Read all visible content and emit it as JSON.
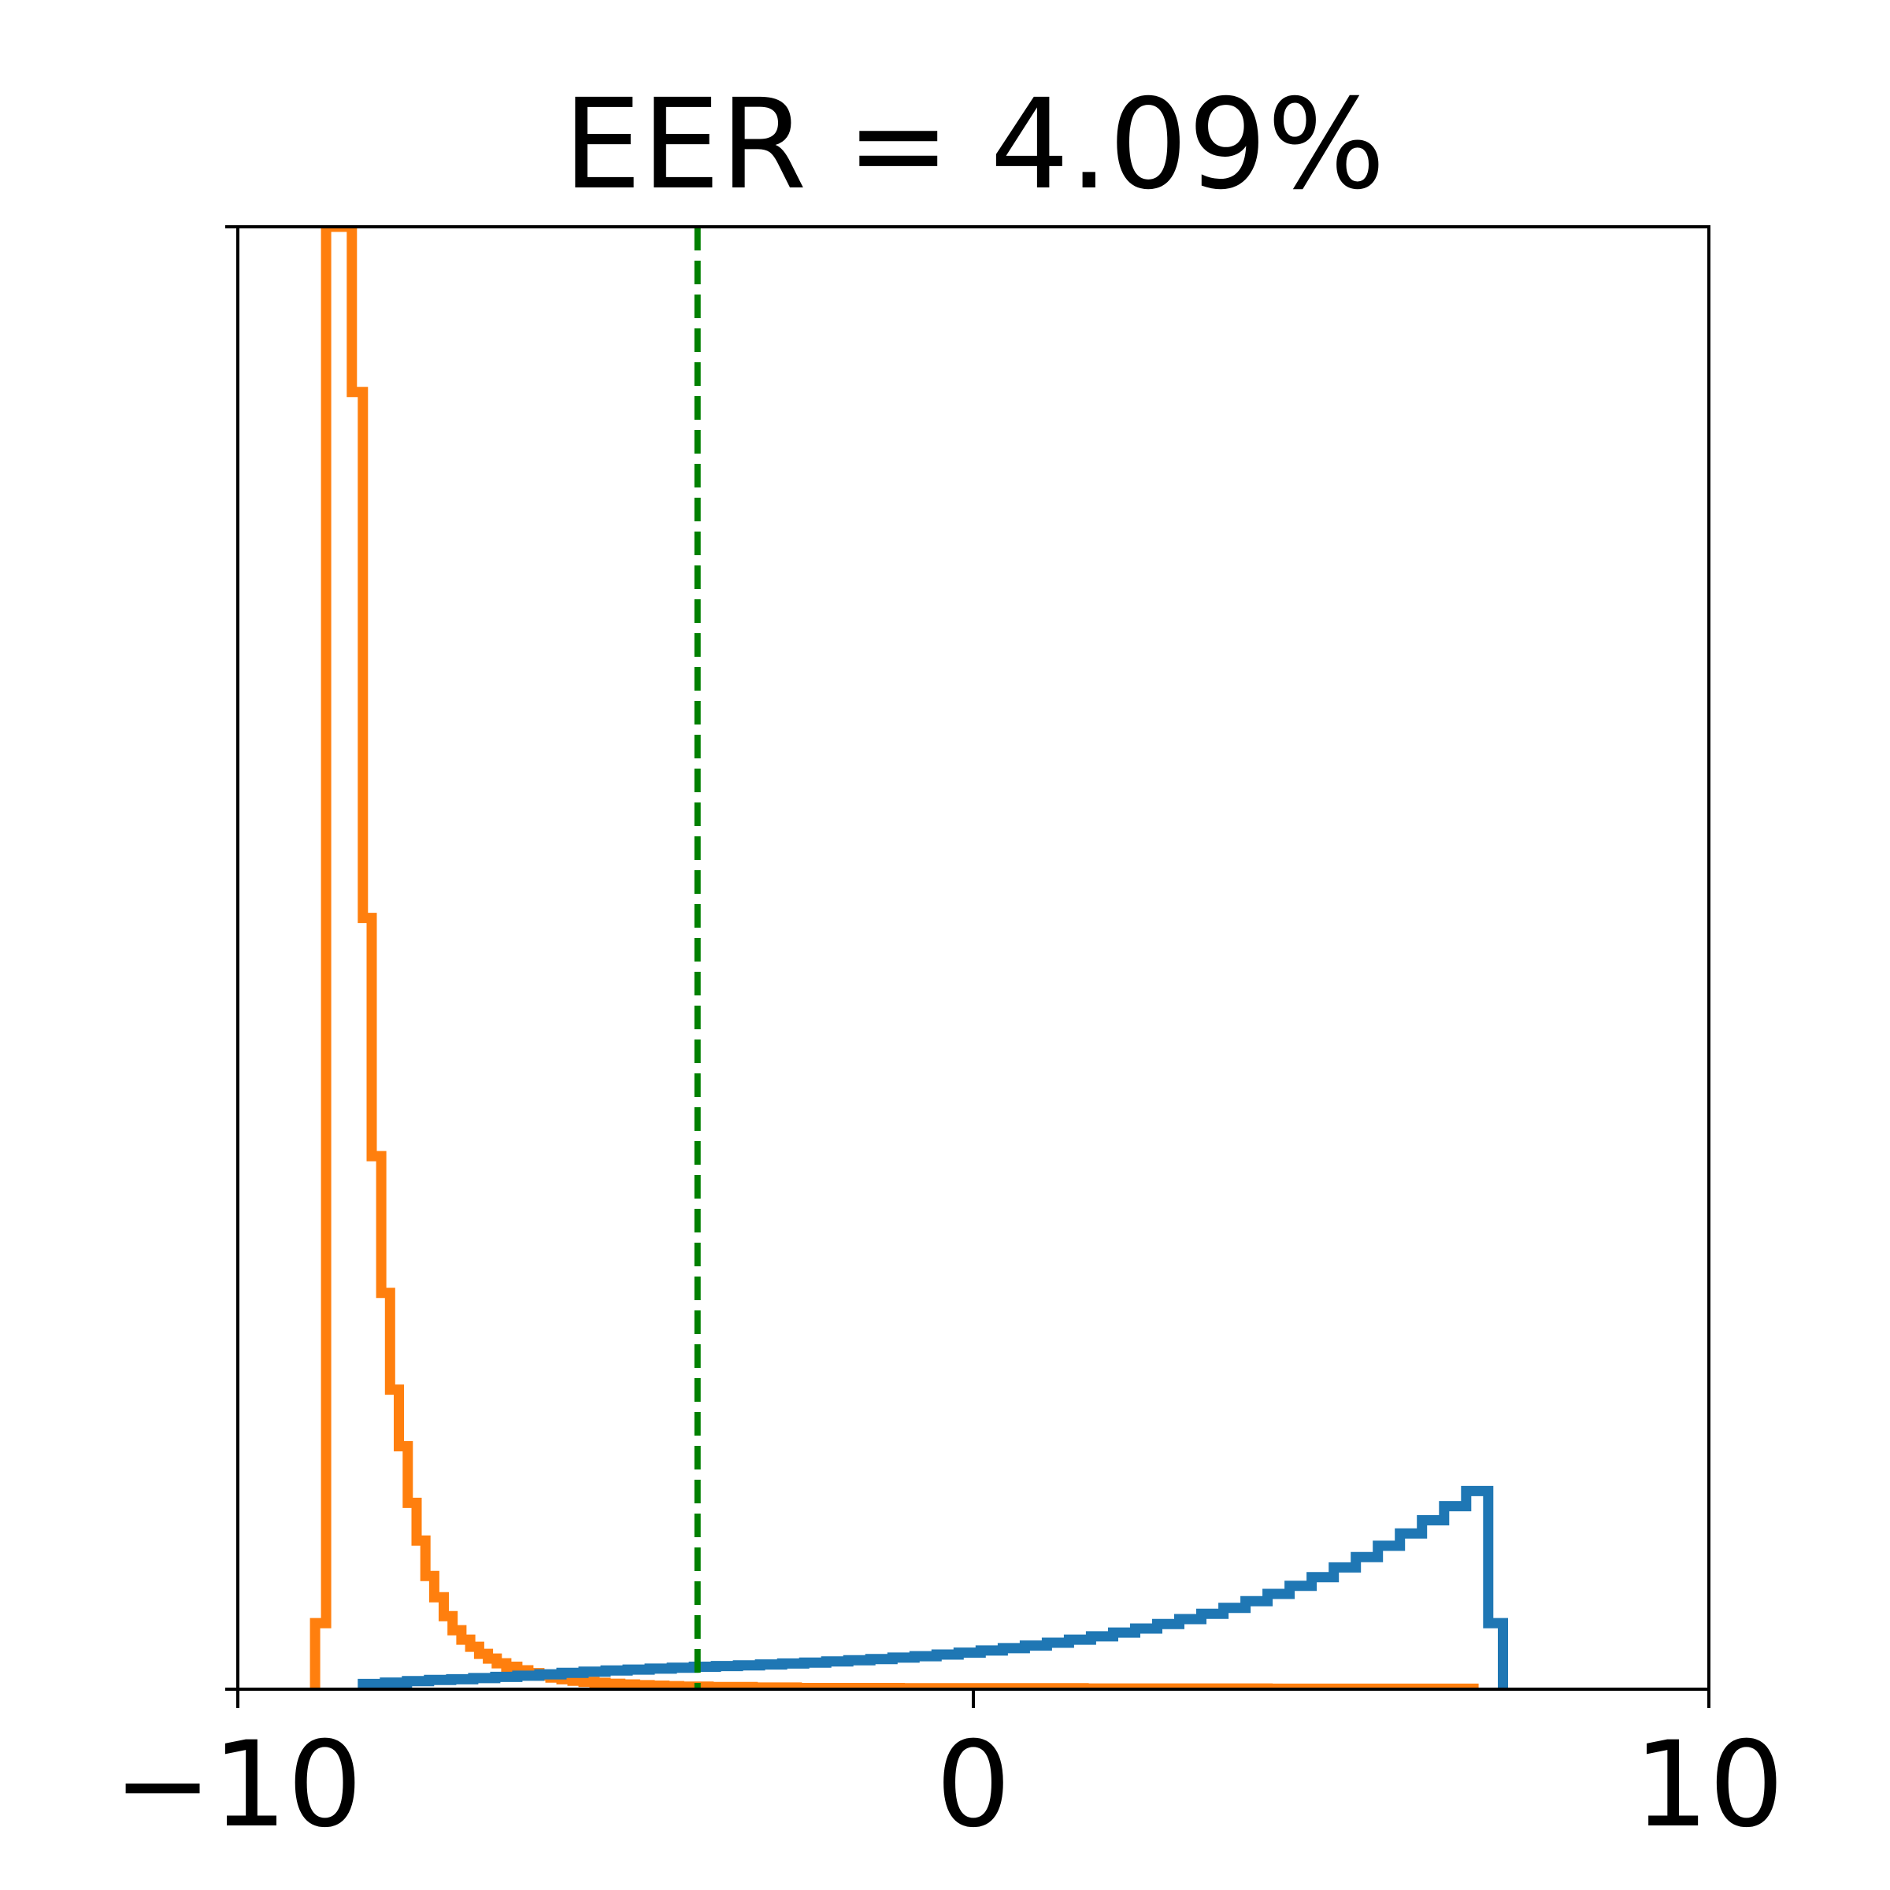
{
  "chart_data": {
    "type": "histogram",
    "title": "EER = 4.09%",
    "xlabel": "",
    "ylabel": "",
    "xlim": [
      -10,
      10
    ],
    "ylim": [
      0,
      0.62
    ],
    "x_ticks": [
      -10,
      0,
      10
    ],
    "x_tick_labels": [
      "−10",
      "0",
      "10"
    ],
    "y_tick_labels": [],
    "grid": false,
    "legend": "none",
    "threshold": {
      "x": -3.75,
      "color": "#008000",
      "style": "dashed"
    },
    "series": [
      {
        "color": "#ff7f0e",
        "style": "step-outline",
        "bins": [
          {
            "x0": -8.95,
            "x1": -8.8,
            "y": 0.028
          },
          {
            "x0": -8.8,
            "x1": -8.45,
            "y": 0.62
          },
          {
            "x0": -8.45,
            "x1": -8.3,
            "y": 0.55
          },
          {
            "x0": -8.3,
            "x1": -8.18,
            "y": 0.327
          },
          {
            "x0": -8.18,
            "x1": -8.05,
            "y": 0.226
          },
          {
            "x0": -8.05,
            "x1": -7.93,
            "y": 0.168
          },
          {
            "x0": -7.93,
            "x1": -7.81,
            "y": 0.127
          },
          {
            "x0": -7.81,
            "x1": -7.69,
            "y": 0.103
          },
          {
            "x0": -7.69,
            "x1": -7.57,
            "y": 0.079
          },
          {
            "x0": -7.57,
            "x1": -7.45,
            "y": 0.063
          },
          {
            "x0": -7.45,
            "x1": -7.33,
            "y": 0.048
          },
          {
            "x0": -7.33,
            "x1": -7.2,
            "y": 0.039
          },
          {
            "x0": -7.2,
            "x1": -7.08,
            "y": 0.031
          },
          {
            "x0": -7.08,
            "x1": -6.96,
            "y": 0.025
          },
          {
            "x0": -6.96,
            "x1": -6.84,
            "y": 0.021
          },
          {
            "x0": -6.84,
            "x1": -6.72,
            "y": 0.018
          },
          {
            "x0": -6.72,
            "x1": -6.6,
            "y": 0.015
          },
          {
            "x0": -6.6,
            "x1": -6.48,
            "y": 0.013
          },
          {
            "x0": -6.48,
            "x1": -6.35,
            "y": 0.011
          },
          {
            "x0": -6.35,
            "x1": -6.2,
            "y": 0.0095
          },
          {
            "x0": -6.2,
            "x1": -6.05,
            "y": 0.008
          },
          {
            "x0": -6.05,
            "x1": -5.9,
            "y": 0.0068
          },
          {
            "x0": -5.9,
            "x1": -5.75,
            "y": 0.0058
          },
          {
            "x0": -5.75,
            "x1": -5.6,
            "y": 0.0049
          },
          {
            "x0": -5.6,
            "x1": -5.45,
            "y": 0.0042
          },
          {
            "x0": -5.45,
            "x1": -5.3,
            "y": 0.0036
          },
          {
            "x0": -5.3,
            "x1": -5.15,
            "y": 0.0031
          },
          {
            "x0": -5.15,
            "x1": -5.0,
            "y": 0.0027
          },
          {
            "x0": -5.0,
            "x1": -4.8,
            "y": 0.0023
          },
          {
            "x0": -4.8,
            "x1": -4.6,
            "y": 0.002
          },
          {
            "x0": -4.6,
            "x1": -4.4,
            "y": 0.0017
          },
          {
            "x0": -4.4,
            "x1": -4.2,
            "y": 0.0015
          },
          {
            "x0": -4.2,
            "x1": -4.0,
            "y": 0.0013
          },
          {
            "x0": -4.0,
            "x1": -3.6,
            "y": 0.0011
          },
          {
            "x0": -3.6,
            "x1": -3.0,
            "y": 0.0009
          },
          {
            "x0": -3.0,
            "x1": -2.4,
            "y": 0.0007
          },
          {
            "x0": -2.4,
            "x1": -1.0,
            "y": 0.0005
          },
          {
            "x0": -1.0,
            "x1": 1.5,
            "y": 0.0004
          },
          {
            "x0": 1.5,
            "x1": 4.0,
            "y": 0.0003
          },
          {
            "x0": 4.0,
            "x1": 6.8,
            "y": 0.0002
          }
        ]
      },
      {
        "color": "#1f77b4",
        "style": "step-outline",
        "bins": [
          {
            "x0": -8.3,
            "x1": -8.0,
            "y": 0.0022
          },
          {
            "x0": -8.0,
            "x1": -7.7,
            "y": 0.0028
          },
          {
            "x0": -7.7,
            "x1": -7.4,
            "y": 0.0034
          },
          {
            "x0": -7.4,
            "x1": -7.1,
            "y": 0.0039
          },
          {
            "x0": -7.1,
            "x1": -6.8,
            "y": 0.0042
          },
          {
            "x0": -6.8,
            "x1": -6.5,
            "y": 0.0047
          },
          {
            "x0": -6.5,
            "x1": -6.2,
            "y": 0.0052
          },
          {
            "x0": -6.2,
            "x1": -5.9,
            "y": 0.0057
          },
          {
            "x0": -5.9,
            "x1": -5.6,
            "y": 0.0063
          },
          {
            "x0": -5.6,
            "x1": -5.3,
            "y": 0.0069
          },
          {
            "x0": -5.3,
            "x1": -5.0,
            "y": 0.0074
          },
          {
            "x0": -5.0,
            "x1": -4.7,
            "y": 0.0079
          },
          {
            "x0": -4.7,
            "x1": -4.4,
            "y": 0.0083
          },
          {
            "x0": -4.4,
            "x1": -4.1,
            "y": 0.0087
          },
          {
            "x0": -4.1,
            "x1": -3.8,
            "y": 0.0091
          },
          {
            "x0": -3.8,
            "x1": -3.5,
            "y": 0.0095
          },
          {
            "x0": -3.5,
            "x1": -3.2,
            "y": 0.0098
          },
          {
            "x0": -3.2,
            "x1": -2.9,
            "y": 0.0101
          },
          {
            "x0": -2.9,
            "x1": -2.6,
            "y": 0.0105
          },
          {
            "x0": -2.6,
            "x1": -2.3,
            "y": 0.0109
          },
          {
            "x0": -2.3,
            "x1": -2.0,
            "y": 0.0113
          },
          {
            "x0": -2.0,
            "x1": -1.7,
            "y": 0.0118
          },
          {
            "x0": -1.7,
            "x1": -1.4,
            "y": 0.0123
          },
          {
            "x0": -1.4,
            "x1": -1.1,
            "y": 0.0128
          },
          {
            "x0": -1.1,
            "x1": -0.8,
            "y": 0.0134
          },
          {
            "x0": -0.8,
            "x1": -0.5,
            "y": 0.014
          },
          {
            "x0": -0.5,
            "x1": -0.2,
            "y": 0.0147
          },
          {
            "x0": -0.2,
            "x1": 0.1,
            "y": 0.0155
          },
          {
            "x0": 0.1,
            "x1": 0.4,
            "y": 0.0164
          },
          {
            "x0": 0.4,
            "x1": 0.7,
            "y": 0.0174
          },
          {
            "x0": 0.7,
            "x1": 1.0,
            "y": 0.0185
          },
          {
            "x0": 1.0,
            "x1": 1.3,
            "y": 0.0197
          },
          {
            "x0": 1.3,
            "x1": 1.6,
            "y": 0.021
          },
          {
            "x0": 1.6,
            "x1": 1.9,
            "y": 0.0224
          },
          {
            "x0": 1.9,
            "x1": 2.2,
            "y": 0.024
          },
          {
            "x0": 2.2,
            "x1": 2.5,
            "y": 0.0257
          },
          {
            "x0": 2.5,
            "x1": 2.8,
            "y": 0.0276
          },
          {
            "x0": 2.8,
            "x1": 3.1,
            "y": 0.0297
          },
          {
            "x0": 3.1,
            "x1": 3.4,
            "y": 0.032
          },
          {
            "x0": 3.4,
            "x1": 3.7,
            "y": 0.0345
          },
          {
            "x0": 3.7,
            "x1": 4.0,
            "y": 0.0373
          },
          {
            "x0": 4.0,
            "x1": 4.3,
            "y": 0.0404
          },
          {
            "x0": 4.3,
            "x1": 4.6,
            "y": 0.0438
          },
          {
            "x0": 4.6,
            "x1": 4.9,
            "y": 0.0475
          },
          {
            "x0": 4.9,
            "x1": 5.2,
            "y": 0.0516
          },
          {
            "x0": 5.2,
            "x1": 5.5,
            "y": 0.056
          },
          {
            "x0": 5.5,
            "x1": 5.8,
            "y": 0.0608
          },
          {
            "x0": 5.8,
            "x1": 6.1,
            "y": 0.066
          },
          {
            "x0": 6.1,
            "x1": 6.4,
            "y": 0.0716
          },
          {
            "x0": 6.4,
            "x1": 6.7,
            "y": 0.0776
          },
          {
            "x0": 6.7,
            "x1": 7.0,
            "y": 0.084
          },
          {
            "x0": 7.0,
            "x1": 7.2,
            "y": 0.028
          }
        ]
      }
    ]
  }
}
